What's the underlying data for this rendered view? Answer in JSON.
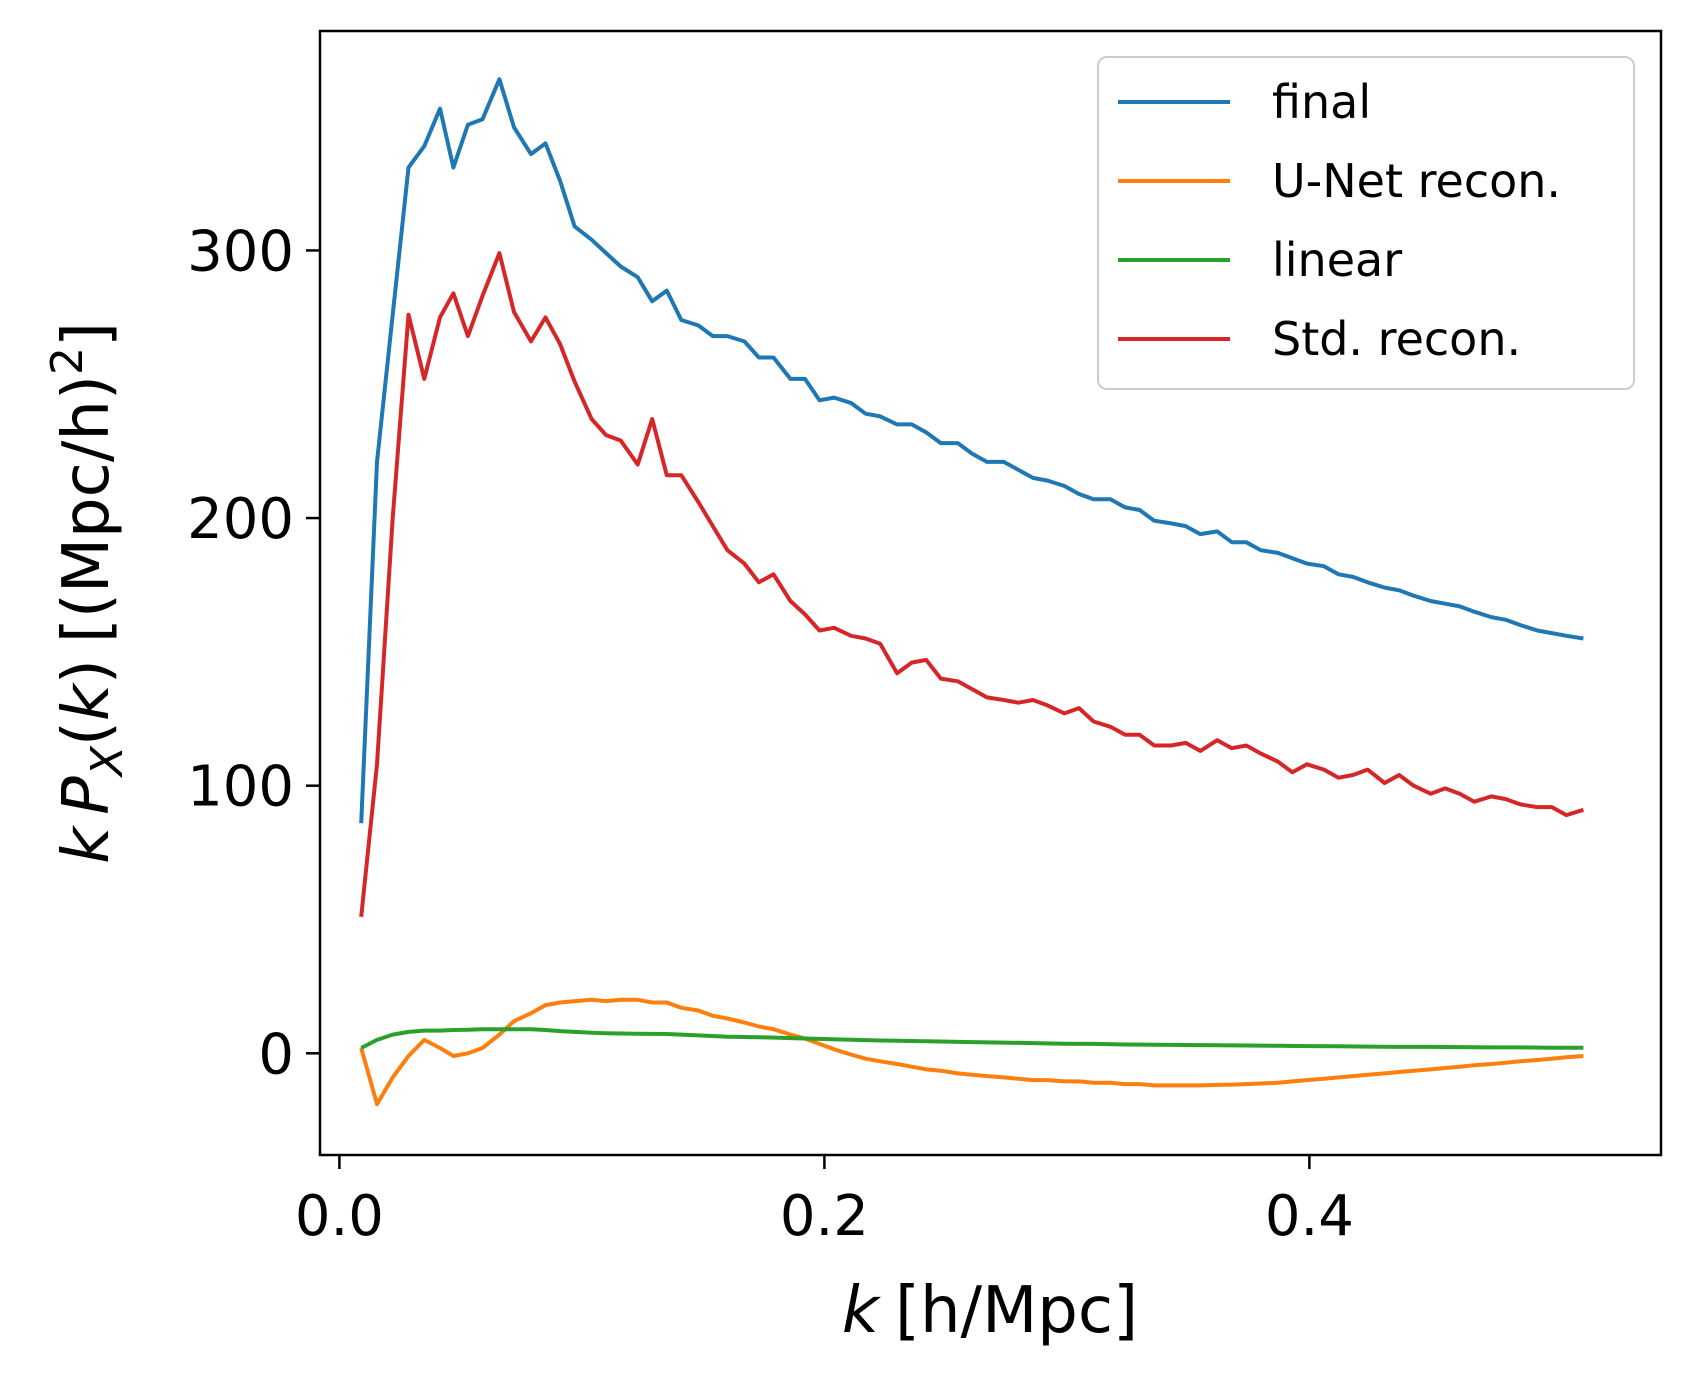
{
  "chart_data": {
    "type": "line",
    "xlabel": {
      "var": "k",
      "unit": "[h/Mpc]"
    },
    "ylabel": {
      "k": "k",
      "P": "P",
      "sub": "X",
      "open": "(",
      "k2": "k",
      "close": ")",
      "unit_open": "[(Mpc/h)",
      "sup": "2",
      "unit_close": "]"
    },
    "xlim": [
      -0.008,
      0.545
    ],
    "ylim": [
      -38,
      382
    ],
    "xticks": [
      {
        "value": 0.0,
        "label": "0.0"
      },
      {
        "value": 0.2,
        "label": "0.2"
      },
      {
        "value": 0.4,
        "label": "0.4"
      }
    ],
    "yticks": [
      {
        "value": 0,
        "label": "0"
      },
      {
        "value": 100,
        "label": "100"
      },
      {
        "value": 200,
        "label": "200"
      },
      {
        "value": 300,
        "label": "300"
      }
    ],
    "legend_position": "top-right",
    "series": [
      {
        "name": "final",
        "color": "#1f77b4",
        "points": [
          [
            0.009,
            86
          ],
          [
            0.0155,
            221
          ],
          [
            0.022,
            276
          ],
          [
            0.0285,
            331
          ],
          [
            0.035,
            339
          ],
          [
            0.0415,
            353
          ],
          [
            0.047,
            331
          ],
          [
            0.053,
            347
          ],
          [
            0.059,
            349
          ],
          [
            0.066,
            364
          ],
          [
            0.072,
            346
          ],
          [
            0.079,
            336
          ],
          [
            0.085,
            340
          ],
          [
            0.091,
            326
          ],
          [
            0.097,
            309
          ],
          [
            0.104,
            304
          ],
          [
            0.11,
            299
          ],
          [
            0.116,
            294
          ],
          [
            0.123,
            290
          ],
          [
            0.129,
            281
          ],
          [
            0.135,
            285
          ],
          [
            0.141,
            274
          ],
          [
            0.148,
            272
          ],
          [
            0.154,
            268
          ],
          [
            0.16,
            268
          ],
          [
            0.167,
            266
          ],
          [
            0.173,
            260
          ],
          [
            0.179,
            260
          ],
          [
            0.186,
            252
          ],
          [
            0.192,
            252
          ],
          [
            0.198,
            244
          ],
          [
            0.204,
            245
          ],
          [
            0.211,
            243
          ],
          [
            0.217,
            239
          ],
          [
            0.223,
            238
          ],
          [
            0.23,
            235
          ],
          [
            0.236,
            235
          ],
          [
            0.242,
            232
          ],
          [
            0.248,
            228
          ],
          [
            0.255,
            228
          ],
          [
            0.261,
            224
          ],
          [
            0.267,
            221
          ],
          [
            0.274,
            221
          ],
          [
            0.28,
            218
          ],
          [
            0.286,
            215
          ],
          [
            0.292,
            214
          ],
          [
            0.299,
            212
          ],
          [
            0.305,
            209
          ],
          [
            0.311,
            207
          ],
          [
            0.318,
            207
          ],
          [
            0.324,
            204
          ],
          [
            0.33,
            203
          ],
          [
            0.336,
            199
          ],
          [
            0.343,
            198
          ],
          [
            0.349,
            197
          ],
          [
            0.355,
            194
          ],
          [
            0.362,
            195
          ],
          [
            0.368,
            191
          ],
          [
            0.374,
            191
          ],
          [
            0.38,
            188
          ],
          [
            0.387,
            187
          ],
          [
            0.393,
            185
          ],
          [
            0.399,
            183
          ],
          [
            0.406,
            182
          ],
          [
            0.412,
            179
          ],
          [
            0.418,
            178
          ],
          [
            0.424,
            176
          ],
          [
            0.431,
            174
          ],
          [
            0.437,
            173
          ],
          [
            0.443,
            171
          ],
          [
            0.45,
            169
          ],
          [
            0.456,
            168
          ],
          [
            0.462,
            167
          ],
          [
            0.468,
            165
          ],
          [
            0.475,
            163
          ],
          [
            0.481,
            162
          ],
          [
            0.487,
            160
          ],
          [
            0.494,
            158
          ],
          [
            0.5,
            157
          ],
          [
            0.506,
            156
          ],
          [
            0.513,
            155
          ]
        ]
      },
      {
        "name": "U-Net recon.",
        "color": "#ff7f0e",
        "points": [
          [
            0.009,
            2
          ],
          [
            0.0155,
            -19
          ],
          [
            0.022,
            -9
          ],
          [
            0.0285,
            -1
          ],
          [
            0.035,
            5
          ],
          [
            0.0415,
            2
          ],
          [
            0.047,
            -1
          ],
          [
            0.053,
            0
          ],
          [
            0.059,
            2
          ],
          [
            0.066,
            7
          ],
          [
            0.072,
            12
          ],
          [
            0.079,
            15
          ],
          [
            0.085,
            18
          ],
          [
            0.091,
            19
          ],
          [
            0.097,
            19.5
          ],
          [
            0.104,
            20
          ],
          [
            0.11,
            19.5
          ],
          [
            0.116,
            20
          ],
          [
            0.123,
            20
          ],
          [
            0.129,
            19
          ],
          [
            0.135,
            19
          ],
          [
            0.141,
            17
          ],
          [
            0.148,
            16
          ],
          [
            0.154,
            14
          ],
          [
            0.16,
            13
          ],
          [
            0.167,
            11.5
          ],
          [
            0.173,
            10
          ],
          [
            0.179,
            9
          ],
          [
            0.186,
            7
          ],
          [
            0.192,
            5.5
          ],
          [
            0.198,
            3.5
          ],
          [
            0.204,
            1.5
          ],
          [
            0.211,
            -0.5
          ],
          [
            0.217,
            -2
          ],
          [
            0.223,
            -3
          ],
          [
            0.23,
            -4
          ],
          [
            0.236,
            -5
          ],
          [
            0.242,
            -6
          ],
          [
            0.248,
            -6.5
          ],
          [
            0.255,
            -7.5
          ],
          [
            0.261,
            -8
          ],
          [
            0.267,
            -8.5
          ],
          [
            0.274,
            -9
          ],
          [
            0.28,
            -9.5
          ],
          [
            0.286,
            -10
          ],
          [
            0.292,
            -10
          ],
          [
            0.299,
            -10.5
          ],
          [
            0.305,
            -10.5
          ],
          [
            0.311,
            -11
          ],
          [
            0.318,
            -11
          ],
          [
            0.324,
            -11.5
          ],
          [
            0.33,
            -11.5
          ],
          [
            0.336,
            -12
          ],
          [
            0.343,
            -12
          ],
          [
            0.349,
            -12
          ],
          [
            0.355,
            -12
          ],
          [
            0.362,
            -11.8
          ],
          [
            0.368,
            -11.7
          ],
          [
            0.374,
            -11.5
          ],
          [
            0.38,
            -11.3
          ],
          [
            0.387,
            -11
          ],
          [
            0.393,
            -10.5
          ],
          [
            0.399,
            -10
          ],
          [
            0.406,
            -9.5
          ],
          [
            0.412,
            -9
          ],
          [
            0.418,
            -8.5
          ],
          [
            0.424,
            -8
          ],
          [
            0.431,
            -7.5
          ],
          [
            0.437,
            -7
          ],
          [
            0.443,
            -6.5
          ],
          [
            0.45,
            -6
          ],
          [
            0.456,
            -5.5
          ],
          [
            0.462,
            -5
          ],
          [
            0.468,
            -4.5
          ],
          [
            0.475,
            -4
          ],
          [
            0.481,
            -3.5
          ],
          [
            0.487,
            -3
          ],
          [
            0.494,
            -2.5
          ],
          [
            0.5,
            -2
          ],
          [
            0.506,
            -1.5
          ],
          [
            0.513,
            -1
          ]
        ]
      },
      {
        "name": "linear",
        "color": "#2ca02c",
        "points": [
          [
            0.009,
            2
          ],
          [
            0.0155,
            5
          ],
          [
            0.022,
            7
          ],
          [
            0.0285,
            8
          ],
          [
            0.035,
            8.5
          ],
          [
            0.0415,
            8.5
          ],
          [
            0.047,
            8.7
          ],
          [
            0.053,
            8.8
          ],
          [
            0.059,
            9
          ],
          [
            0.066,
            9
          ],
          [
            0.072,
            9
          ],
          [
            0.079,
            9
          ],
          [
            0.085,
            8.7
          ],
          [
            0.091,
            8.3
          ],
          [
            0.097,
            8
          ],
          [
            0.104,
            7.7
          ],
          [
            0.11,
            7.5
          ],
          [
            0.123,
            7.3
          ],
          [
            0.135,
            7.2
          ],
          [
            0.148,
            6.7
          ],
          [
            0.16,
            6.2
          ],
          [
            0.173,
            6
          ],
          [
            0.186,
            5.7
          ],
          [
            0.198,
            5.4
          ],
          [
            0.211,
            5.1
          ],
          [
            0.223,
            4.8
          ],
          [
            0.236,
            4.6
          ],
          [
            0.248,
            4.4
          ],
          [
            0.261,
            4.2
          ],
          [
            0.274,
            4.0
          ],
          [
            0.286,
            3.8
          ],
          [
            0.299,
            3.6
          ],
          [
            0.311,
            3.5
          ],
          [
            0.324,
            3.3
          ],
          [
            0.336,
            3.2
          ],
          [
            0.349,
            3.1
          ],
          [
            0.362,
            3.0
          ],
          [
            0.374,
            2.9
          ],
          [
            0.387,
            2.8
          ],
          [
            0.399,
            2.7
          ],
          [
            0.412,
            2.6
          ],
          [
            0.424,
            2.5
          ],
          [
            0.437,
            2.4
          ],
          [
            0.45,
            2.4
          ],
          [
            0.462,
            2.3
          ],
          [
            0.475,
            2.2
          ],
          [
            0.487,
            2.2
          ],
          [
            0.5,
            2.1
          ],
          [
            0.513,
            2.1
          ]
        ]
      },
      {
        "name": "Std. recon.",
        "color": "#d62728",
        "points": [
          [
            0.009,
            51
          ],
          [
            0.0155,
            108
          ],
          [
            0.022,
            200
          ],
          [
            0.0285,
            276
          ],
          [
            0.035,
            252
          ],
          [
            0.0415,
            275
          ],
          [
            0.047,
            284
          ],
          [
            0.053,
            268
          ],
          [
            0.059,
            283
          ],
          [
            0.066,
            299
          ],
          [
            0.072,
            277
          ],
          [
            0.079,
            266
          ],
          [
            0.085,
            275
          ],
          [
            0.091,
            265
          ],
          [
            0.097,
            251
          ],
          [
            0.104,
            237
          ],
          [
            0.11,
            231
          ],
          [
            0.116,
            229
          ],
          [
            0.123,
            220
          ],
          [
            0.129,
            237
          ],
          [
            0.135,
            216
          ],
          [
            0.141,
            216
          ],
          [
            0.148,
            206
          ],
          [
            0.154,
            197
          ],
          [
            0.16,
            188
          ],
          [
            0.167,
            183
          ],
          [
            0.173,
            176
          ],
          [
            0.179,
            179
          ],
          [
            0.186,
            169
          ],
          [
            0.192,
            164
          ],
          [
            0.198,
            158
          ],
          [
            0.204,
            159
          ],
          [
            0.211,
            156
          ],
          [
            0.217,
            155
          ],
          [
            0.223,
            153
          ],
          [
            0.23,
            142
          ],
          [
            0.236,
            146
          ],
          [
            0.242,
            147
          ],
          [
            0.248,
            140
          ],
          [
            0.255,
            139
          ],
          [
            0.261,
            136
          ],
          [
            0.267,
            133
          ],
          [
            0.274,
            132
          ],
          [
            0.28,
            131
          ],
          [
            0.286,
            132
          ],
          [
            0.292,
            130
          ],
          [
            0.299,
            127
          ],
          [
            0.305,
            129
          ],
          [
            0.311,
            124
          ],
          [
            0.318,
            122
          ],
          [
            0.324,
            119
          ],
          [
            0.33,
            119
          ],
          [
            0.336,
            115
          ],
          [
            0.343,
            115
          ],
          [
            0.349,
            116
          ],
          [
            0.355,
            113
          ],
          [
            0.362,
            117
          ],
          [
            0.368,
            114
          ],
          [
            0.374,
            115
          ],
          [
            0.38,
            112
          ],
          [
            0.387,
            109
          ],
          [
            0.393,
            105
          ],
          [
            0.399,
            108
          ],
          [
            0.406,
            106
          ],
          [
            0.412,
            103
          ],
          [
            0.418,
            104
          ],
          [
            0.424,
            106
          ],
          [
            0.431,
            101
          ],
          [
            0.437,
            104
          ],
          [
            0.443,
            100
          ],
          [
            0.45,
            97
          ],
          [
            0.456,
            99
          ],
          [
            0.462,
            97
          ],
          [
            0.468,
            94
          ],
          [
            0.475,
            96
          ],
          [
            0.481,
            95
          ],
          [
            0.487,
            93
          ],
          [
            0.494,
            92
          ],
          [
            0.5,
            92
          ],
          [
            0.506,
            89
          ],
          [
            0.513,
            91
          ]
        ]
      }
    ]
  }
}
